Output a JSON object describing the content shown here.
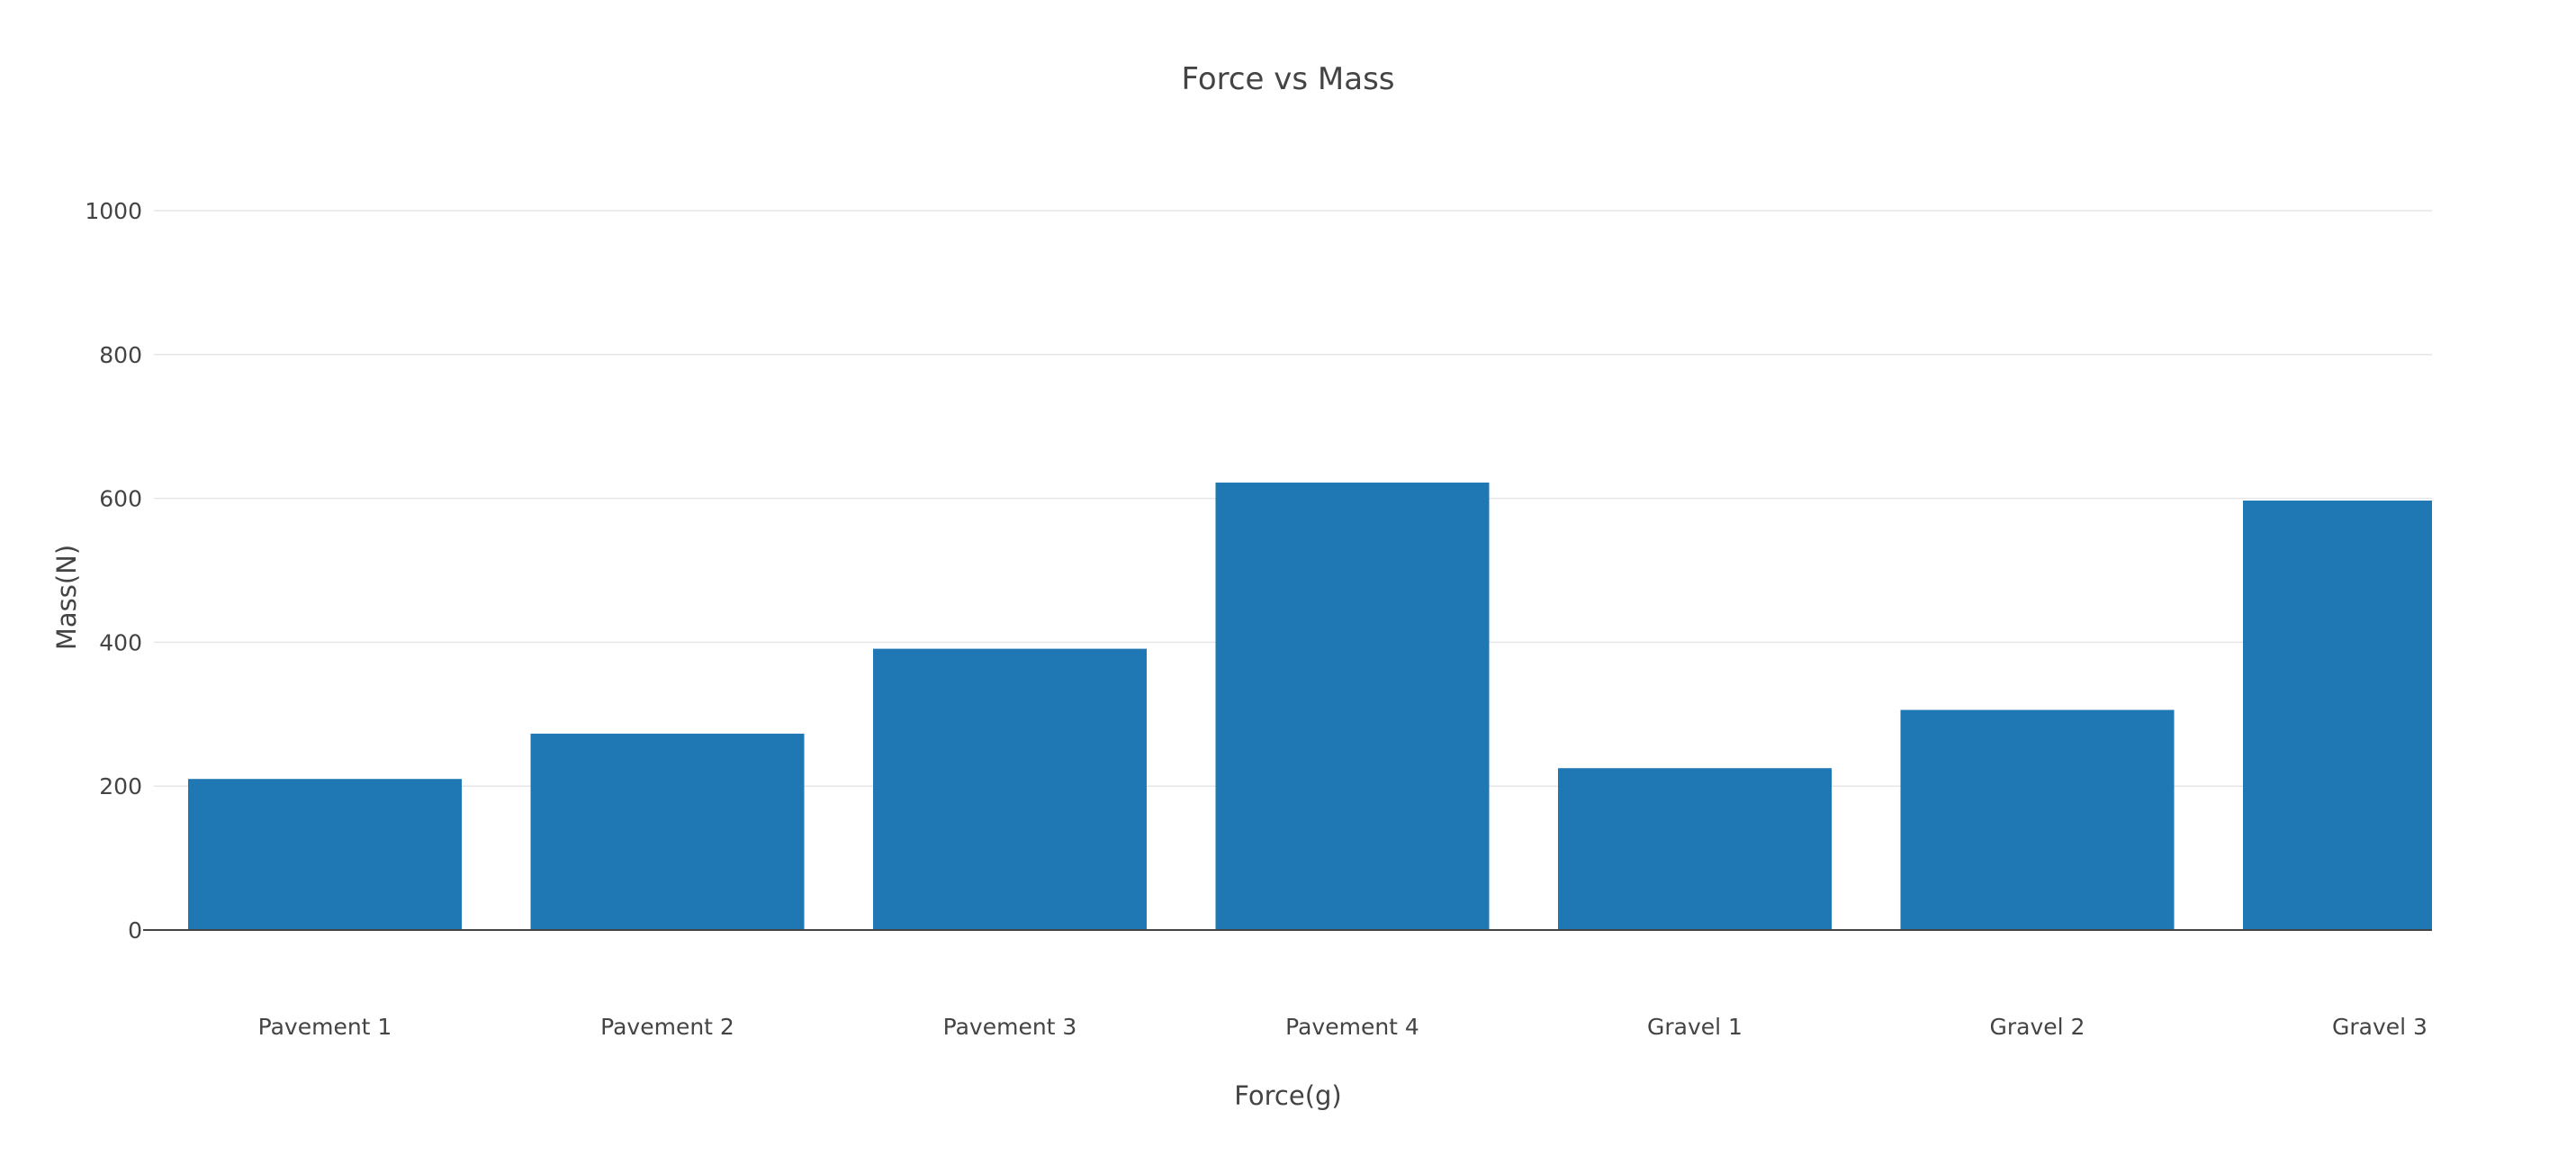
{
  "chart_data": {
    "type": "bar",
    "title": "Force vs Mass",
    "xlabel": "Force(g)",
    "ylabel": "Mass(N)",
    "categories": [
      "Pavement 1",
      "Pavement 2",
      "Pavement 3",
      "Pavement 4",
      "Gravel 1",
      "Gravel 2",
      "Gravel 3"
    ],
    "values": [
      210,
      273,
      391,
      622,
      225,
      306,
      597
    ],
    "ylim": [
      0,
      1000
    ],
    "yticks": [
      0,
      200,
      400,
      600,
      800,
      1000
    ],
    "grid": true,
    "legend": "none",
    "colors": {
      "bar": "#1f77b4"
    }
  }
}
